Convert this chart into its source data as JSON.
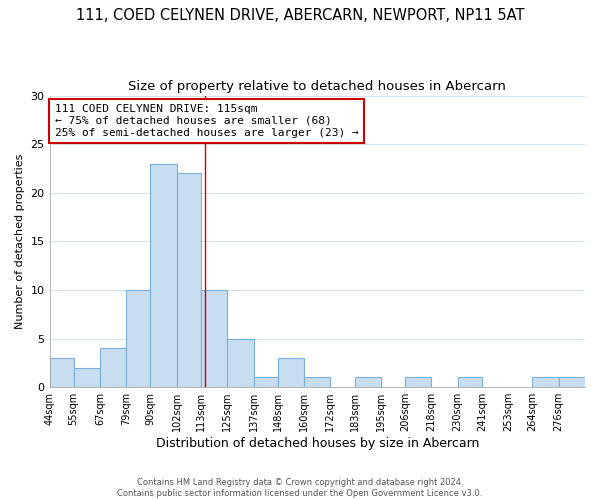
{
  "title": "111, COED CELYNEN DRIVE, ABERCARN, NEWPORT, NP11 5AT",
  "subtitle": "Size of property relative to detached houses in Abercarn",
  "xlabel": "Distribution of detached houses by size in Abercarn",
  "ylabel": "Number of detached properties",
  "bin_labels": [
    "44sqm",
    "55sqm",
    "67sqm",
    "79sqm",
    "90sqm",
    "102sqm",
    "113sqm",
    "125sqm",
    "137sqm",
    "148sqm",
    "160sqm",
    "172sqm",
    "183sqm",
    "195sqm",
    "206sqm",
    "218sqm",
    "230sqm",
    "241sqm",
    "253sqm",
    "264sqm",
    "276sqm"
  ],
  "bin_edges": [
    44,
    55,
    67,
    79,
    90,
    102,
    113,
    125,
    137,
    148,
    160,
    172,
    183,
    195,
    206,
    218,
    230,
    241,
    253,
    264,
    276
  ],
  "bin_widths": [
    11,
    12,
    12,
    11,
    12,
    11,
    12,
    12,
    11,
    12,
    12,
    11,
    12,
    11,
    12,
    12,
    11,
    12,
    11,
    12,
    12
  ],
  "counts": [
    3,
    2,
    4,
    10,
    23,
    22,
    10,
    5,
    1,
    3,
    1,
    0,
    1,
    0,
    1,
    0,
    1,
    0,
    0,
    1,
    1
  ],
  "bar_color": "#c9ddf0",
  "bar_edge_color": "#7ab0d8",
  "annotation_title": "111 COED CELYNEN DRIVE: 115sqm",
  "annotation_line1": "← 75% of detached houses are smaller (68)",
  "annotation_line2": "25% of semi-detached houses are larger (23) →",
  "annotation_box_edge": "#cc0000",
  "annotation_box_face": "#ffffff",
  "vline_x": 115,
  "vline_color": "#cc0000",
  "ylim": [
    0,
    30
  ],
  "yticks": [
    0,
    5,
    10,
    15,
    20,
    25,
    30
  ],
  "footer_line1": "Contains HM Land Registry data © Crown copyright and database right 2024.",
  "footer_line2": "Contains public sector information licensed under the Open Government Licence v3.0.",
  "background_color": "#ffffff",
  "grid_color": "#d0e4f5",
  "title_fontsize": 10.5,
  "subtitle_fontsize": 9.5,
  "ylabel_fontsize": 8,
  "xlabel_fontsize": 9
}
